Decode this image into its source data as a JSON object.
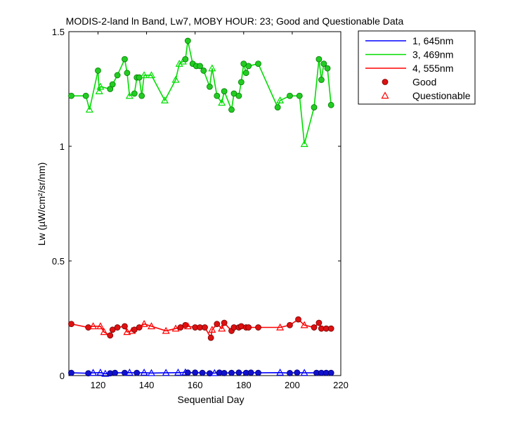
{
  "chart_data": {
    "type": "line",
    "title": "MODIS-2-land ln Band,  Lw7, MOBY HOUR: 23;  Good and Questionable Data",
    "xlabel": "Sequential Day",
    "ylabel": "Lw (µW/cm²/sr/nm)",
    "xlim": [
      108,
      220
    ],
    "ylim": [
      0,
      1.5
    ],
    "xticks": [
      120,
      140,
      160,
      180,
      200,
      220
    ],
    "yticks": [
      0,
      0.5,
      1,
      1.5
    ],
    "xtick_labels": [
      "120",
      "140",
      "160",
      "180",
      "200",
      "220"
    ],
    "ytick_labels": [
      "0",
      "0.5",
      "1",
      "1.5"
    ],
    "legend_position": "outside top-right",
    "series": [
      {
        "name": "1, 645nm",
        "color": "#0000ff",
        "points": [
          [
            109,
            0.012,
            "g"
          ],
          [
            116,
            0.01,
            "g"
          ],
          [
            118,
            0.012,
            "q"
          ],
          [
            121,
            0.013,
            "q"
          ],
          [
            123,
            0.008,
            "q"
          ],
          [
            125,
            0.01,
            "g"
          ],
          [
            127,
            0.012,
            "g"
          ],
          [
            131,
            0.012,
            "g"
          ],
          [
            133,
            0.013,
            "q"
          ],
          [
            136,
            0.012,
            "g"
          ],
          [
            139,
            0.013,
            "q"
          ],
          [
            142,
            0.011,
            "q"
          ],
          [
            148,
            0.012,
            "q"
          ],
          [
            153,
            0.013,
            "q"
          ],
          [
            156,
            0.014,
            "q"
          ],
          [
            157,
            0.013,
            "g"
          ],
          [
            160,
            0.013,
            "g"
          ],
          [
            163,
            0.012,
            "g"
          ],
          [
            166,
            0.01,
            "g"
          ],
          [
            168,
            0.011,
            "q"
          ],
          [
            170,
            0.013,
            "g"
          ],
          [
            172,
            0.011,
            "g"
          ],
          [
            175,
            0.012,
            "g"
          ],
          [
            178,
            0.013,
            "g"
          ],
          [
            181,
            0.012,
            "g"
          ],
          [
            183,
            0.013,
            "g"
          ],
          [
            186,
            0.012,
            "g"
          ],
          [
            195,
            0.013,
            "q"
          ],
          [
            199,
            0.011,
            "g"
          ],
          [
            202,
            0.013,
            "g"
          ],
          [
            205,
            0.012,
            "q"
          ],
          [
            210,
            0.012,
            "g"
          ],
          [
            212,
            0.012,
            "g"
          ],
          [
            214,
            0.012,
            "g"
          ],
          [
            216,
            0.012,
            "g"
          ]
        ]
      },
      {
        "name": "3, 469nm",
        "color": "#00dd00",
        "points": [
          [
            109,
            1.22,
            "g"
          ],
          [
            115,
            1.22,
            "g"
          ],
          [
            116.5,
            1.16,
            "q"
          ],
          [
            120,
            1.33,
            "g"
          ],
          [
            120.5,
            1.24,
            "q"
          ],
          [
            121,
            1.26,
            "q"
          ],
          [
            125,
            1.25,
            "g"
          ],
          [
            126,
            1.27,
            "g"
          ],
          [
            128,
            1.31,
            "g"
          ],
          [
            131,
            1.38,
            "g"
          ],
          [
            132,
            1.32,
            "g"
          ],
          [
            133,
            1.22,
            "q"
          ],
          [
            135,
            1.23,
            "g"
          ],
          [
            136,
            1.3,
            "g"
          ],
          [
            137,
            1.3,
            "g"
          ],
          [
            138,
            1.22,
            "g"
          ],
          [
            139,
            1.31,
            "q"
          ],
          [
            142,
            1.31,
            "q"
          ],
          [
            147.5,
            1.2,
            "q"
          ],
          [
            152,
            1.29,
            "q"
          ],
          [
            153.5,
            1.36,
            "q"
          ],
          [
            155,
            1.37,
            "q"
          ],
          [
            156,
            1.38,
            "g"
          ],
          [
            157,
            1.46,
            "g"
          ],
          [
            159,
            1.36,
            "g"
          ],
          [
            160.5,
            1.35,
            "g"
          ],
          [
            162,
            1.35,
            "g"
          ],
          [
            163.5,
            1.33,
            "g"
          ],
          [
            166,
            1.26,
            "g"
          ],
          [
            167,
            1.34,
            "q"
          ],
          [
            169,
            1.22,
            "g"
          ],
          [
            171,
            1.19,
            "q"
          ],
          [
            172,
            1.24,
            "g"
          ],
          [
            175,
            1.16,
            "g"
          ],
          [
            176,
            1.23,
            "g"
          ],
          [
            178,
            1.22,
            "g"
          ],
          [
            179,
            1.28,
            "g"
          ],
          [
            180,
            1.36,
            "g"
          ],
          [
            181,
            1.32,
            "g"
          ],
          [
            182,
            1.35,
            "g"
          ],
          [
            186,
            1.36,
            "g"
          ],
          [
            194,
            1.17,
            "g"
          ],
          [
            195,
            1.2,
            "q"
          ],
          [
            199,
            1.22,
            "g"
          ],
          [
            203,
            1.22,
            "g"
          ],
          [
            205,
            1.01,
            "q"
          ],
          [
            209,
            1.17,
            "g"
          ],
          [
            211,
            1.38,
            "g"
          ],
          [
            212,
            1.29,
            "g"
          ],
          [
            213,
            1.36,
            "g"
          ],
          [
            214.5,
            1.34,
            "g"
          ],
          [
            216,
            1.18,
            "g"
          ]
        ]
      },
      {
        "name": "4, 555nm",
        "color": "#ff0000",
        "points": [
          [
            109,
            0.225,
            "g"
          ],
          [
            116,
            0.21,
            "g"
          ],
          [
            118,
            0.215,
            "q"
          ],
          [
            121,
            0.215,
            "q"
          ],
          [
            122.5,
            0.19,
            "q"
          ],
          [
            125,
            0.175,
            "g"
          ],
          [
            126,
            0.2,
            "g"
          ],
          [
            128,
            0.21,
            "g"
          ],
          [
            131,
            0.215,
            "g"
          ],
          [
            132,
            0.19,
            "q"
          ],
          [
            134,
            0.195,
            "q"
          ],
          [
            135,
            0.2,
            "g"
          ],
          [
            137,
            0.21,
            "g"
          ],
          [
            139,
            0.225,
            "q"
          ],
          [
            142,
            0.215,
            "q"
          ],
          [
            148,
            0.195,
            "q"
          ],
          [
            152,
            0.205,
            "q"
          ],
          [
            154,
            0.21,
            "g"
          ],
          [
            156,
            0.22,
            "g"
          ],
          [
            157,
            0.215,
            "q"
          ],
          [
            160,
            0.21,
            "g"
          ],
          [
            162,
            0.21,
            "g"
          ],
          [
            164,
            0.21,
            "g"
          ],
          [
            166.5,
            0.165,
            "g"
          ],
          [
            167,
            0.2,
            "q"
          ],
          [
            169,
            0.225,
            "g"
          ],
          [
            171,
            0.205,
            "q"
          ],
          [
            172,
            0.23,
            "g"
          ],
          [
            175,
            0.195,
            "g"
          ],
          [
            176,
            0.21,
            "g"
          ],
          [
            178,
            0.21,
            "g"
          ],
          [
            179,
            0.215,
            "g"
          ],
          [
            181,
            0.21,
            "g"
          ],
          [
            182,
            0.21,
            "g"
          ],
          [
            186,
            0.21,
            "g"
          ],
          [
            195,
            0.21,
            "q"
          ],
          [
            199,
            0.22,
            "g"
          ],
          [
            202.5,
            0.245,
            "g"
          ],
          [
            205,
            0.22,
            "q"
          ],
          [
            209,
            0.21,
            "g"
          ],
          [
            211,
            0.23,
            "g"
          ],
          [
            212,
            0.205,
            "g"
          ],
          [
            214,
            0.205,
            "g"
          ],
          [
            216,
            0.205,
            "g"
          ]
        ]
      }
    ],
    "legend": [
      {
        "label": "1, 645nm",
        "kind": "line",
        "color": "#0000ff"
      },
      {
        "label": "3, 469nm",
        "kind": "line",
        "color": "#00dd00"
      },
      {
        "label": "4, 555nm",
        "kind": "line",
        "color": "#ff0000"
      },
      {
        "label": "Good",
        "kind": "dot",
        "color": "#ff0000"
      },
      {
        "label": "Questionable",
        "kind": "triangle",
        "color": "#ff0000"
      }
    ]
  }
}
